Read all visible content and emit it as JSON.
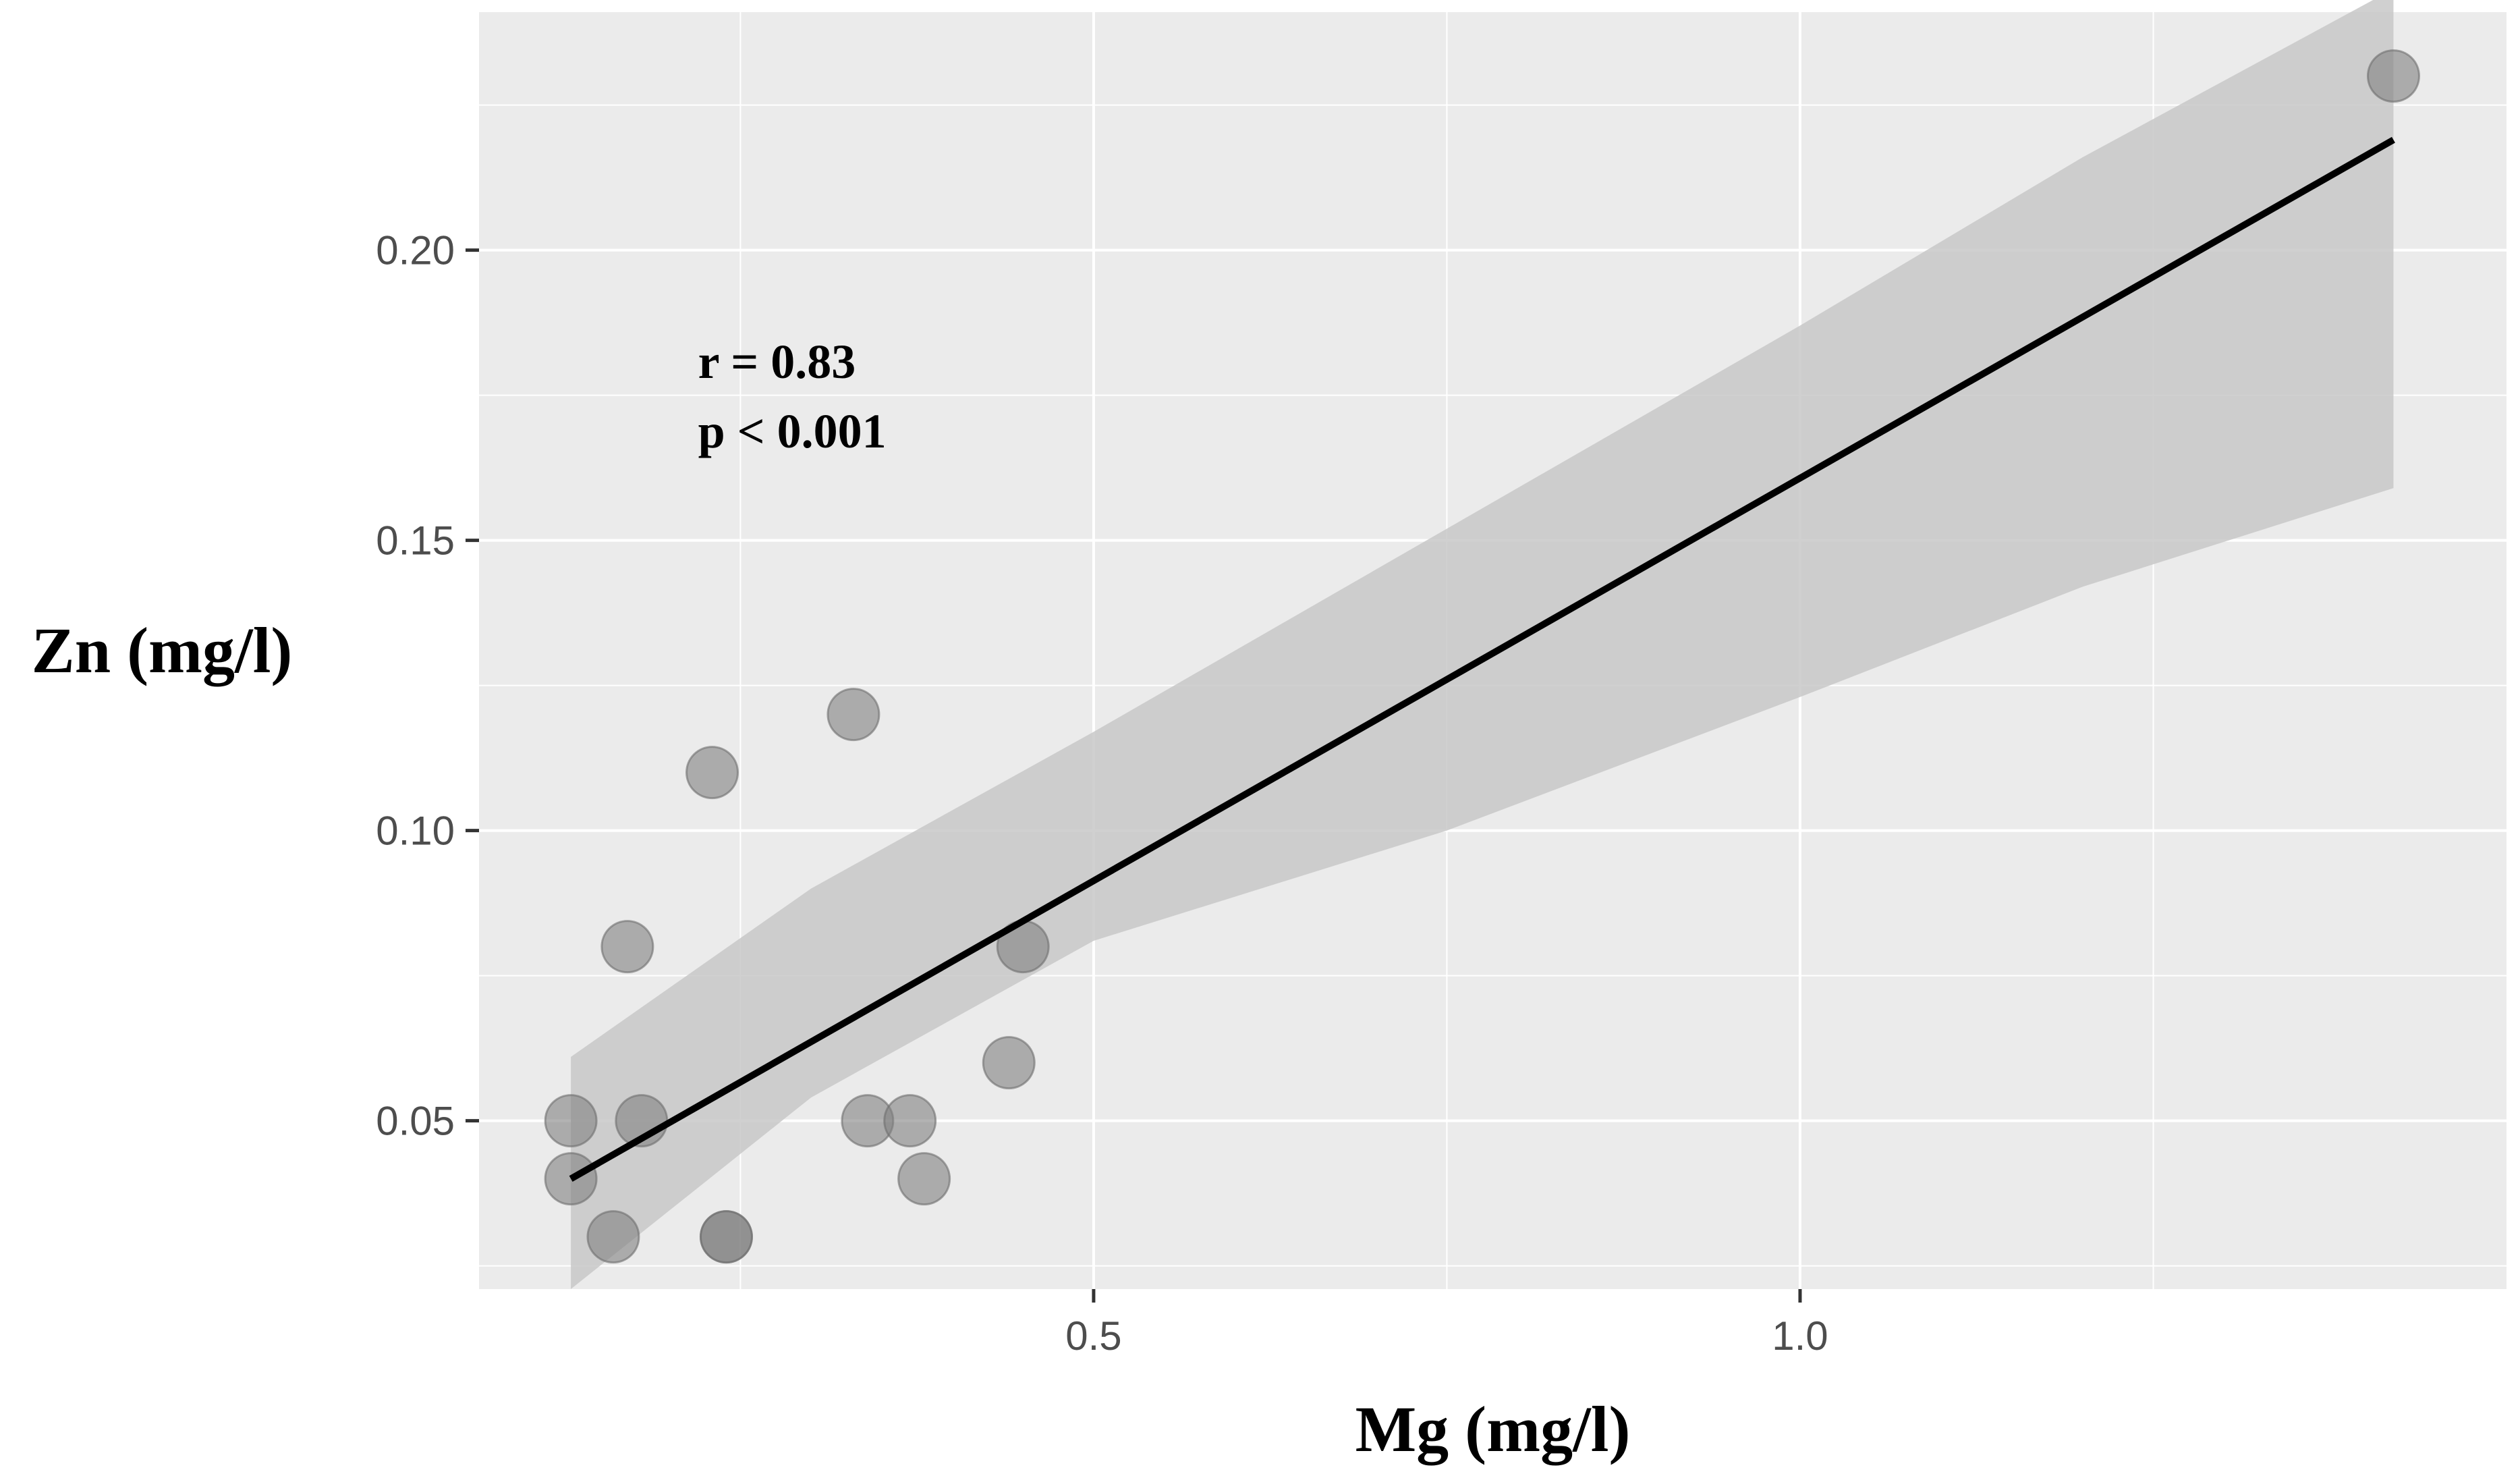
{
  "chart_data": {
    "type": "scatter",
    "title": "",
    "xlabel": "Mg (mg/l)",
    "ylabel": "Zn (mg/l)",
    "xlim": [
      0.065,
      1.5
    ],
    "ylim": [
      0.021,
      0.241
    ],
    "xticks": [
      0.5,
      1.0
    ],
    "xtick_labels": [
      "0.5",
      "1.0"
    ],
    "x_minor_grid": [
      0.25,
      0.75,
      1.25
    ],
    "yticks": [
      0.05,
      0.1,
      0.15,
      0.2
    ],
    "ytick_labels": [
      "0.05",
      "0.10",
      "0.15",
      "0.20"
    ],
    "y_minor_grid": [
      0.025,
      0.075,
      0.125,
      0.175,
      0.225
    ],
    "grid": true,
    "points": [
      {
        "x": 0.13,
        "y": 0.05
      },
      {
        "x": 0.13,
        "y": 0.04
      },
      {
        "x": 0.16,
        "y": 0.03
      },
      {
        "x": 0.17,
        "y": 0.08
      },
      {
        "x": 0.18,
        "y": 0.05
      },
      {
        "x": 0.23,
        "y": 0.11
      },
      {
        "x": 0.24,
        "y": 0.03
      },
      {
        "x": 0.24,
        "y": 0.03
      },
      {
        "x": 0.33,
        "y": 0.12
      },
      {
        "x": 0.34,
        "y": 0.05
      },
      {
        "x": 0.37,
        "y": 0.05
      },
      {
        "x": 0.38,
        "y": 0.04
      },
      {
        "x": 0.44,
        "y": 0.06
      },
      {
        "x": 0.45,
        "y": 0.08
      },
      {
        "x": 1.42,
        "y": 0.23
      }
    ],
    "fit_line": {
      "x": [
        0.13,
        1.42
      ],
      "y": [
        0.04,
        0.219
      ]
    },
    "confidence_band": {
      "x": [
        0.13,
        0.3,
        0.5,
        0.75,
        1.0,
        1.2,
        1.42
      ],
      "upper": [
        0.061,
        0.09,
        0.117,
        0.152,
        0.187,
        0.216,
        0.245
      ],
      "lower": [
        0.021,
        0.054,
        0.081,
        0.1,
        0.123,
        0.142,
        0.159
      ]
    },
    "annotations": [
      {
        "text": "r = 0.83",
        "x": 0.22,
        "y": 0.178
      },
      {
        "text": "p < 0.001",
        "x": 0.22,
        "y": 0.166
      }
    ],
    "colors": {
      "panel_background": "#ebebeb",
      "grid": "#ffffff",
      "confidence_band": "#c8c8c8",
      "point": "#808080",
      "point_stroke": "#6e6e6e",
      "fit_line": "#000000"
    }
  }
}
